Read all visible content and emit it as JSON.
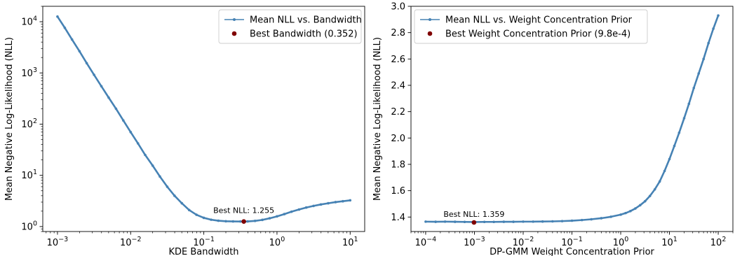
{
  "chart_data": [
    {
      "type": "line",
      "xlabel": "KDE Bandwidth",
      "ylabel": "Mean Negative Log-Likelihood (NLL)",
      "xscale": "log",
      "yscale": "log",
      "xlim": [
        0.00063,
        15.8
      ],
      "ylim": [
        0.8,
        20000
      ],
      "xticks": [
        0.001,
        0.01,
        0.1,
        1,
        10
      ],
      "xtick_labels": [
        {
          "base": "10",
          "exp": "−3"
        },
        {
          "base": "10",
          "exp": "−2"
        },
        {
          "base": "10",
          "exp": "−1"
        },
        {
          "base": "10",
          "exp": "0"
        },
        {
          "base": "10",
          "exp": "1"
        }
      ],
      "yticks": [
        1,
        10,
        100,
        1000,
        10000
      ],
      "ytick_labels": [
        {
          "base": "10",
          "exp": "0"
        },
        {
          "base": "10",
          "exp": "1"
        },
        {
          "base": "10",
          "exp": "2"
        },
        {
          "base": "10",
          "exp": "3"
        },
        {
          "base": "10",
          "exp": "4"
        }
      ],
      "series": [
        {
          "name": "Mean NLL vs. Bandwidth",
          "color": "#4682b4",
          "x": [
            0.001,
            0.00126,
            0.00158,
            0.002,
            0.00251,
            0.00316,
            0.00398,
            0.00501,
            0.00631,
            0.00794,
            0.01,
            0.0126,
            0.0158,
            0.02,
            0.0251,
            0.0316,
            0.0398,
            0.0501,
            0.0631,
            0.0794,
            0.1,
            0.126,
            0.158,
            0.2,
            0.251,
            0.316,
            0.352,
            0.398,
            0.501,
            0.631,
            0.794,
            1.0,
            1.26,
            1.58,
            2.0,
            2.51,
            3.16,
            3.98,
            5.01,
            6.31,
            7.94,
            10.0
          ],
          "y": [
            12600,
            7600,
            4500,
            2650,
            1550,
            920,
            550,
            330,
            200,
            118,
            70,
            42,
            25,
            15.5,
            9.5,
            6.0,
            4.0,
            2.85,
            2.1,
            1.7,
            1.48,
            1.36,
            1.3,
            1.27,
            1.26,
            1.256,
            1.255,
            1.26,
            1.29,
            1.35,
            1.45,
            1.58,
            1.75,
            1.95,
            2.15,
            2.35,
            2.53,
            2.7,
            2.85,
            3.0,
            3.12,
            3.25
          ]
        }
      ],
      "best": {
        "name": "Best Bandwidth (0.352)",
        "x": 0.352,
        "y": 1.255,
        "color": "#800000"
      },
      "annotation": {
        "text": "Best NLL: 1.255",
        "x": 0.352,
        "y": 1.255
      },
      "legend": "top-right",
      "grid": false
    },
    {
      "type": "line",
      "xlabel": "DP-GMM Weight Concentration Prior",
      "ylabel": "Mean Negative Log-Likelihood (NLL)",
      "xscale": "log",
      "yscale": "linear",
      "xlim": [
        5e-05,
        200
      ],
      "ylim": [
        1.29,
        3.0
      ],
      "xticks": [
        0.0001,
        0.001,
        0.01,
        0.1,
        1,
        10,
        100
      ],
      "xtick_labels": [
        {
          "base": "10",
          "exp": "−4"
        },
        {
          "base": "10",
          "exp": "−3"
        },
        {
          "base": "10",
          "exp": "−2"
        },
        {
          "base": "10",
          "exp": "−1"
        },
        {
          "base": "10",
          "exp": "0"
        },
        {
          "base": "10",
          "exp": "1"
        },
        {
          "base": "10",
          "exp": "2"
        }
      ],
      "yticks": [
        1.4,
        1.6,
        1.8,
        2.0,
        2.2,
        2.4,
        2.6,
        2.8,
        3.0
      ],
      "ytick_labels": [
        "1.4",
        "1.6",
        "1.8",
        "2.0",
        "2.2",
        "2.4",
        "2.6",
        "2.8",
        "3.0"
      ],
      "series": [
        {
          "name": "Mean NLL vs. Weight Concentration Prior",
          "color": "#4682b4",
          "x": [
            0.0001,
            0.00016,
            0.00025,
            0.0004,
            0.00063,
            0.001,
            0.0016,
            0.0025,
            0.004,
            0.0063,
            0.01,
            0.016,
            0.025,
            0.04,
            0.063,
            0.1,
            0.16,
            0.25,
            0.4,
            0.63,
            1.0,
            1.26,
            1.58,
            2.0,
            2.51,
            3.16,
            3.98,
            5.01,
            6.31,
            7.94,
            10.0,
            12.6,
            15.8,
            20.0,
            25.1,
            31.6,
            39.8,
            50.1,
            63.1,
            79.4,
            100
          ],
          "y": [
            1.365,
            1.364,
            1.365,
            1.364,
            1.363,
            1.362,
            1.363,
            1.363,
            1.364,
            1.364,
            1.365,
            1.365,
            1.366,
            1.367,
            1.369,
            1.372,
            1.377,
            1.383,
            1.391,
            1.402,
            1.418,
            1.43,
            1.445,
            1.465,
            1.49,
            1.52,
            1.56,
            1.61,
            1.67,
            1.75,
            1.84,
            1.94,
            2.04,
            2.15,
            2.26,
            2.38,
            2.49,
            2.6,
            2.72,
            2.83,
            2.93
          ]
        }
      ],
      "best": {
        "name": "Best Weight Concentration Prior (9.8e-4)",
        "x": 0.00098,
        "y": 1.359,
        "color": "#800000"
      },
      "annotation": {
        "text": "Best NLL: 1.359",
        "x": 0.00098,
        "y": 1.359
      },
      "legend": "top-left",
      "grid": false
    }
  ]
}
